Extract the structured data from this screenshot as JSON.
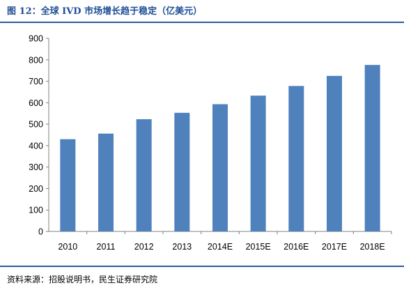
{
  "figure": {
    "title": "图 12：全球 IVD 市场增长趋于稳定（亿美元）",
    "source": "资料来源：招股说明书，民生证券研究院"
  },
  "colors": {
    "bar": "#4f81bd",
    "title": "#1f4e96",
    "rule": "#2a5a9e",
    "axis": "#808080",
    "text": "#000000"
  },
  "chart_data": {
    "type": "bar",
    "title": "",
    "xlabel": "",
    "ylabel": "",
    "categories": [
      "2010",
      "2011",
      "2012",
      "2013",
      "2014E",
      "2015E",
      "2016E",
      "2017E",
      "2018E"
    ],
    "values": [
      430,
      456,
      523,
      553,
      593,
      633,
      678,
      725,
      776
    ],
    "ylim": [
      0,
      900
    ],
    "yticks": [
      0,
      100,
      200,
      300,
      400,
      500,
      600,
      700,
      800,
      900
    ],
    "grid": false,
    "legend": "none"
  }
}
